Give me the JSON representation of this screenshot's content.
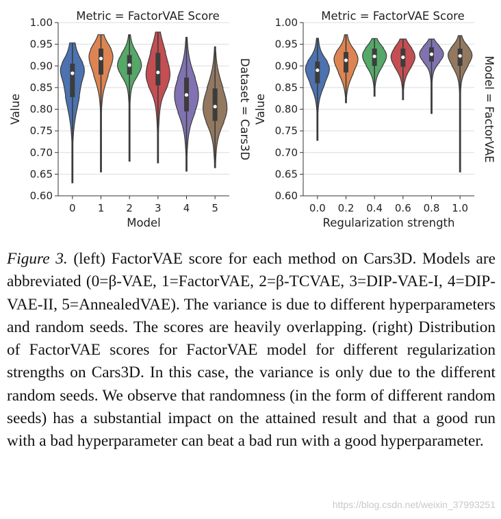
{
  "chart_data": [
    {
      "type": "violin",
      "title": "Metric = FactorVAE Score",
      "side_label": "Dataset = Cars3D",
      "xlabel": "Model",
      "ylabel": "Value",
      "ylim": [
        0.6,
        1.0
      ],
      "yticks": [
        "1.00",
        "0.95",
        "0.90",
        "0.85",
        "0.80",
        "0.75",
        "0.70",
        "0.65",
        "0.60"
      ],
      "grid": true,
      "categories": [
        "0",
        "1",
        "2",
        "3",
        "4",
        "5"
      ],
      "colors": [
        "#4c72b0",
        "#dd8452",
        "#55a868",
        "#c44e52",
        "#8172b2",
        "#937860"
      ],
      "distributions": [
        {
          "min": 0.63,
          "q1": 0.828,
          "median": 0.883,
          "q3": 0.905,
          "max": 0.953
        },
        {
          "min": 0.655,
          "q1": 0.88,
          "median": 0.917,
          "q3": 0.94,
          "max": 0.972
        },
        {
          "min": 0.68,
          "q1": 0.88,
          "median": 0.902,
          "q3": 0.925,
          "max": 0.972
        },
        {
          "min": 0.676,
          "q1": 0.855,
          "median": 0.885,
          "q3": 0.93,
          "max": 0.978
        },
        {
          "min": 0.657,
          "q1": 0.795,
          "median": 0.833,
          "q3": 0.873,
          "max": 0.966
        },
        {
          "min": 0.665,
          "q1": 0.773,
          "median": 0.806,
          "q3": 0.848,
          "max": 0.944
        }
      ]
    },
    {
      "type": "violin",
      "title": "Metric = FactorVAE Score",
      "side_label": "Model = FactorVAE",
      "xlabel": "Regularization strength",
      "ylabel": "Value",
      "ylim": [
        0.6,
        1.0
      ],
      "yticks": [
        "1.00",
        "0.95",
        "0.90",
        "0.85",
        "0.80",
        "0.75",
        "0.70",
        "0.65",
        "0.60"
      ],
      "grid": true,
      "categories": [
        "0.0",
        "0.2",
        "0.4",
        "0.6",
        "0.8",
        "1.0"
      ],
      "colors": [
        "#4c72b0",
        "#dd8452",
        "#55a868",
        "#c44e52",
        "#8172b2",
        "#937860"
      ],
      "distributions": [
        {
          "min": 0.728,
          "q1": 0.86,
          "median": 0.89,
          "q3": 0.91,
          "max": 0.964
        },
        {
          "min": 0.815,
          "q1": 0.885,
          "median": 0.913,
          "q3": 0.932,
          "max": 0.972
        },
        {
          "min": 0.83,
          "q1": 0.9,
          "median": 0.922,
          "q3": 0.94,
          "max": 0.963
        },
        {
          "min": 0.822,
          "q1": 0.898,
          "median": 0.92,
          "q3": 0.94,
          "max": 0.962
        },
        {
          "min": 0.79,
          "q1": 0.91,
          "median": 0.927,
          "q3": 0.943,
          "max": 0.962
        },
        {
          "min": 0.655,
          "q1": 0.9,
          "median": 0.923,
          "q3": 0.94,
          "max": 0.97
        }
      ]
    }
  ],
  "caption": {
    "label": "Figure 3.",
    "text": " (left) FactorVAE score for each method on Cars3D. Models are abbreviated (0=β-VAE, 1=FactorVAE, 2=β-TCVAE, 3=DIP-VAE-I, 4=DIP-VAE-II, 5=AnnealedVAE). The variance is due to different hyperparameters and random seeds. The scores are heavily overlapping. (right) Distribution of FactorVAE scores for FactorVAE model for different regularization strengths on Cars3D. In this case, the variance is only due to the different random seeds. We observe that randomness (in the form of different random seeds) has a substantial impact on the attained result and that a good run with a bad hyperparameter can beat a bad run with a good hyperparameter."
  },
  "watermark": "https://blog.csdn.net/weixin_37993251"
}
